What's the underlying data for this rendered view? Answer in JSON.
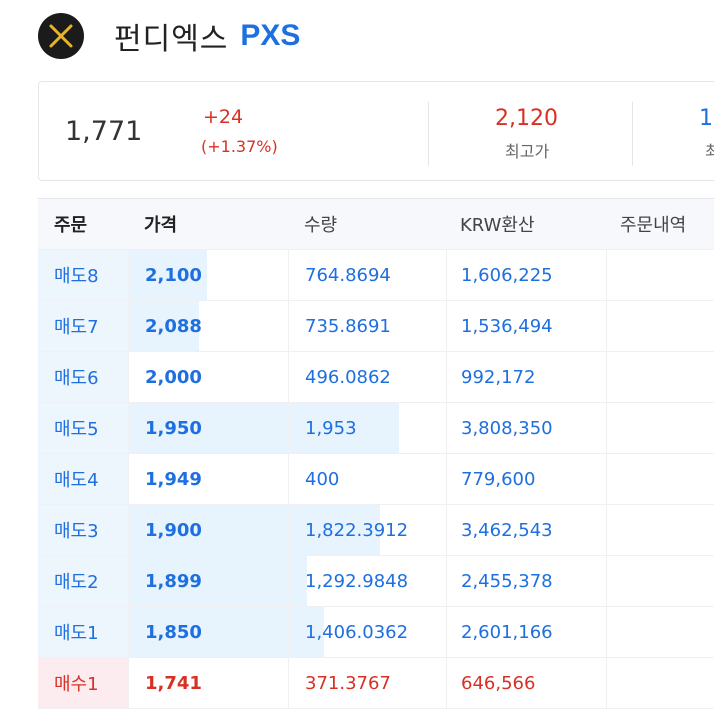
{
  "header": {
    "logo_icon": "pundix-x-icon",
    "name": "펀디엑스",
    "symbol": "PXS"
  },
  "summary": {
    "current_price": "1,771",
    "change_abs": "+24",
    "change_pct": "(+1.37%)",
    "high_value": "2,120",
    "high_label": "최고가",
    "low_value": "1",
    "low_label": "최"
  },
  "orderbook": {
    "headers": {
      "order": "주문",
      "price": "가격",
      "qty": "수량",
      "krw": "KRW환산",
      "history": "주문내역"
    },
    "rows": [
      {
        "side": "ask",
        "order": "매도8",
        "price": "2,100",
        "qty": "764.8694",
        "krw": "1,606,225",
        "depth_fraction": 0.29
      },
      {
        "side": "ask",
        "order": "매도7",
        "price": "2,088",
        "qty": "735.8691",
        "krw": "1,536,494",
        "depth_fraction": 0.26
      },
      {
        "side": "ask",
        "order": "매도6",
        "price": "2,000",
        "qty": "496.0862",
        "krw": "992,172",
        "depth_fraction": 0.0
      },
      {
        "side": "ask",
        "order": "매도5",
        "price": "1,950",
        "qty": "1,953",
        "krw": "3,808,350",
        "depth_fraction": 1.0
      },
      {
        "side": "ask",
        "order": "매도4",
        "price": "1,949",
        "qty": "400",
        "krw": "779,600",
        "depth_fraction": 0.0
      },
      {
        "side": "ask",
        "order": "매도3",
        "price": "1,900",
        "qty": "1,822.3912",
        "krw": "3,462,543",
        "depth_fraction": 0.93
      },
      {
        "side": "ask",
        "order": "매도2",
        "price": "1,899",
        "qty": "1,292.9848",
        "krw": "2,455,378",
        "depth_fraction": 0.66
      },
      {
        "side": "ask",
        "order": "매도1",
        "price": "1,850",
        "qty": "1,406.0362",
        "krw": "2,601,166",
        "depth_fraction": 0.72
      },
      {
        "side": "bid",
        "order": "매수1",
        "price": "1,741",
        "qty": "371.3767",
        "krw": "646,566",
        "depth_fraction": 0.0
      }
    ]
  }
}
